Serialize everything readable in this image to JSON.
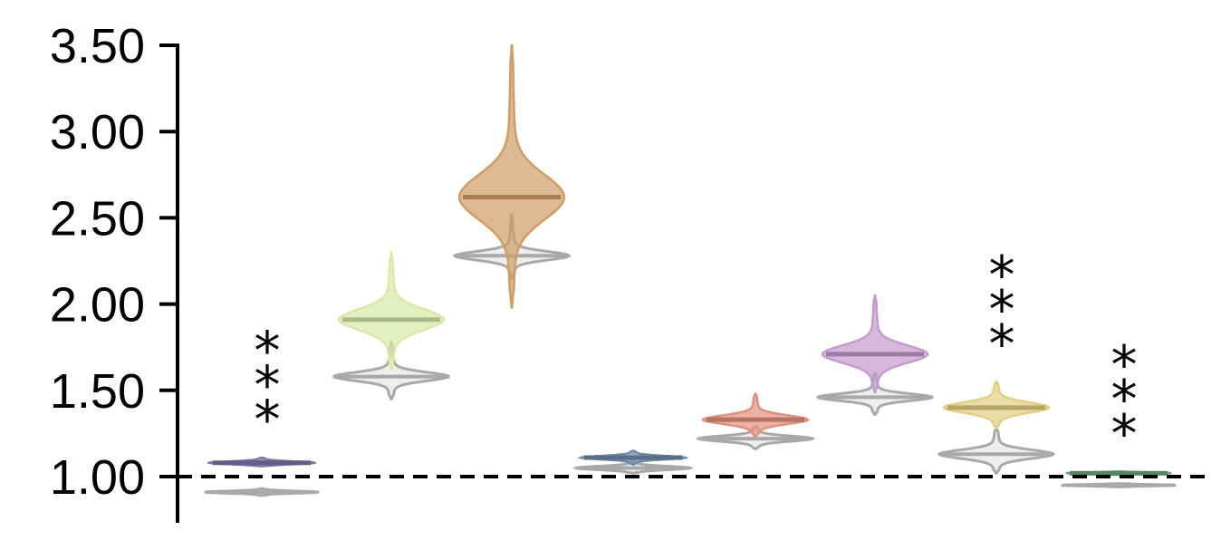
{
  "chart_data": {
    "type": "violin",
    "title": "",
    "xlabel": "",
    "ylabel": "",
    "ylim": [
      0.75,
      3.5
    ],
    "yticks": [
      1.0,
      1.5,
      2.0,
      2.5,
      3.0,
      3.5
    ],
    "ytick_labels": [
      "1.00",
      "1.50",
      "2.00",
      "2.50",
      "3.00",
      "3.50"
    ],
    "reference_line": {
      "y": 1.0,
      "style": "dashed",
      "color": "#000000"
    },
    "groups": [
      {
        "color": "#7b74a6",
        "main": {
          "median": 1.08,
          "min": 1.06,
          "max": 1.11,
          "sd": 0.008
        },
        "control": {
          "median": 0.91,
          "min": 0.89,
          "max": 0.93,
          "sd": 0.006
        },
        "significance": "***"
      },
      {
        "color": "#d9e9a8",
        "main": {
          "median": 1.91,
          "min": 1.62,
          "max": 2.3,
          "sd": 0.06
        },
        "control": {
          "median": 1.58,
          "min": 1.45,
          "max": 1.78,
          "sd": 0.025
        },
        "significance": ""
      },
      {
        "color": "#cf9d66",
        "main": {
          "median": 2.62,
          "min": 1.98,
          "max": 3.5,
          "sd": 0.13
        },
        "control": {
          "median": 2.28,
          "min": 2.15,
          "max": 2.52,
          "sd": 0.025
        },
        "significance": ""
      },
      {
        "color": "#7189a8",
        "main": {
          "median": 1.11,
          "min": 1.07,
          "max": 1.15,
          "sd": 0.01
        },
        "control": {
          "median": 1.05,
          "min": 1.02,
          "max": 1.09,
          "sd": 0.01
        },
        "significance": ""
      },
      {
        "color": "#e0917c",
        "main": {
          "median": 1.33,
          "min": 1.23,
          "max": 1.48,
          "sd": 0.025
        },
        "control": {
          "median": 1.22,
          "min": 1.16,
          "max": 1.29,
          "sd": 0.015
        },
        "significance": ""
      },
      {
        "color": "#c49acf",
        "main": {
          "median": 1.71,
          "min": 1.49,
          "max": 2.05,
          "sd": 0.05
        },
        "control": {
          "median": 1.46,
          "min": 1.36,
          "max": 1.6,
          "sd": 0.02
        },
        "significance": ""
      },
      {
        "color": "#e2cf82",
        "main": {
          "median": 1.4,
          "min": 1.28,
          "max": 1.55,
          "sd": 0.03
        },
        "control": {
          "median": 1.13,
          "min": 1.02,
          "max": 1.28,
          "sd": 0.025
        },
        "significance": "***"
      },
      {
        "color": "#6aa77d",
        "main": {
          "median": 1.02,
          "min": 1.01,
          "max": 1.03,
          "sd": 0.004
        },
        "control": {
          "median": 0.95,
          "min": 0.94,
          "max": 0.96,
          "sd": 0.004
        },
        "significance": "***"
      }
    ],
    "control_color": "#a9a9a9"
  }
}
